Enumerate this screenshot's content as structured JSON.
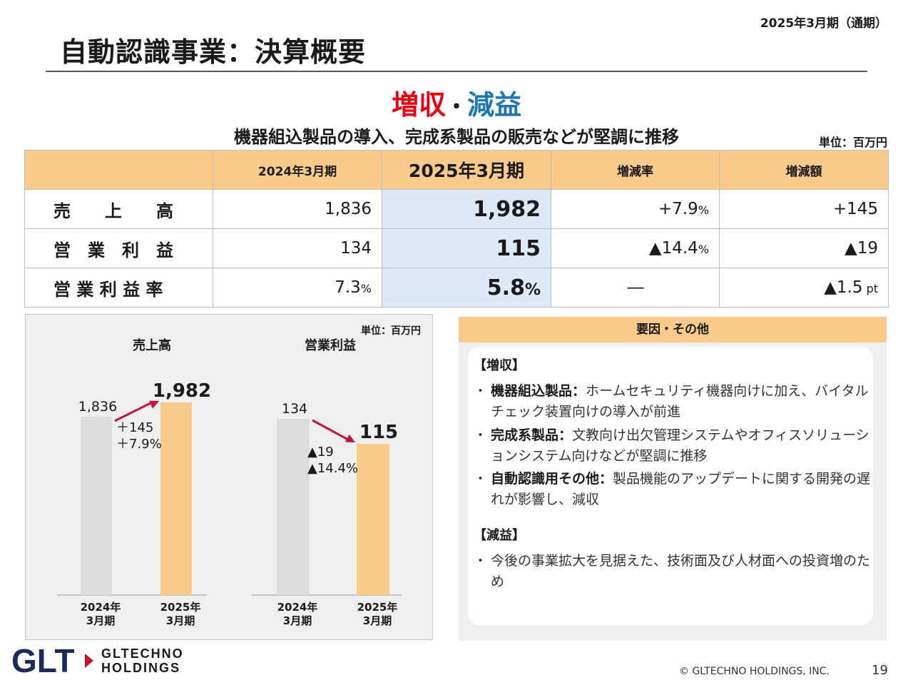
{
  "header": {
    "period": "2025年3月期（通期）",
    "title": "自動認識事業：決算概要"
  },
  "headline": {
    "up": "増収",
    "sep": "・",
    "down": "減益",
    "sub": "機器組込製品の導入、完成系製品の販売などが堅調に推移",
    "unit": "単位：百万円",
    "up_color": "#e60012",
    "down_color": "#1f78b4"
  },
  "table": {
    "columns": [
      "",
      "2024年3月期",
      "2025年3月期",
      "増減率",
      "増減額"
    ],
    "rows": [
      {
        "label": "売　　上　　高",
        "prev": "1,836",
        "cur": "1,982",
        "rate": "+7.9",
        "rate_unit": "%",
        "diff": "+145",
        "diff_unit": ""
      },
      {
        "label": "営　業　利　益",
        "prev": "134",
        "cur": "115",
        "rate": "▲14.4",
        "rate_unit": "%",
        "diff": "▲19",
        "diff_unit": ""
      },
      {
        "label": "営 業 利 益 率",
        "prev": "7.3",
        "prev_unit": "%",
        "cur": "5.8",
        "cur_unit": "%",
        "rate": "―",
        "rate_unit": "",
        "diff": "▲1.5",
        "diff_unit": " pt"
      }
    ]
  },
  "chart_panel": {
    "unit": "単位：百万円"
  },
  "chart_data": [
    {
      "type": "bar",
      "title": "売上高",
      "categories": [
        "2024年\n3月期",
        "2025年\n3月期"
      ],
      "values": [
        1836,
        1982
      ],
      "labels": [
        "1,836",
        "1,982"
      ],
      "change": [
        "＋145",
        "＋7.9%"
      ],
      "colors": [
        "#dcdcdc",
        "#f9cb88"
      ],
      "arrow_color": "#c0143c"
    },
    {
      "type": "bar",
      "title": "営業利益",
      "categories": [
        "2024年\n3月期",
        "2025年\n3月期"
      ],
      "values": [
        134,
        115
      ],
      "labels": [
        "134",
        "115"
      ],
      "change": [
        "▲19",
        "▲14.4%"
      ],
      "colors": [
        "#dcdcdc",
        "#f9cb88"
      ],
      "arrow_color": "#c0143c"
    }
  ],
  "notes": {
    "title": "要因・その他",
    "increase_head": "【増収】",
    "increase_items": [
      {
        "key": "機器組込製品：",
        "text": "ホームセキュリティ機器向けに加え、バイタルチェック装置向けの導入が前進"
      },
      {
        "key": "完成系製品：",
        "text": "文教向け出欠管理システムやオフィスソリューションシステム向けなどが堅調に推移"
      },
      {
        "key": "自動認識用その他：",
        "text": "製品機能のアップデートに関する開発の遅れが影響し、減収"
      }
    ],
    "decrease_head": "【減益】",
    "decrease_items": [
      {
        "key": "",
        "text": "今後の事業拡大を見据えた、技術面及び人材面への投資増のため"
      }
    ]
  },
  "footer": {
    "logo_mark": "GLT",
    "logo_line1": "GLTECHNO",
    "logo_line2": "HOLDINGS",
    "copyright": "© GLTECHNO HOLDINGS, INC.",
    "page": "19"
  }
}
